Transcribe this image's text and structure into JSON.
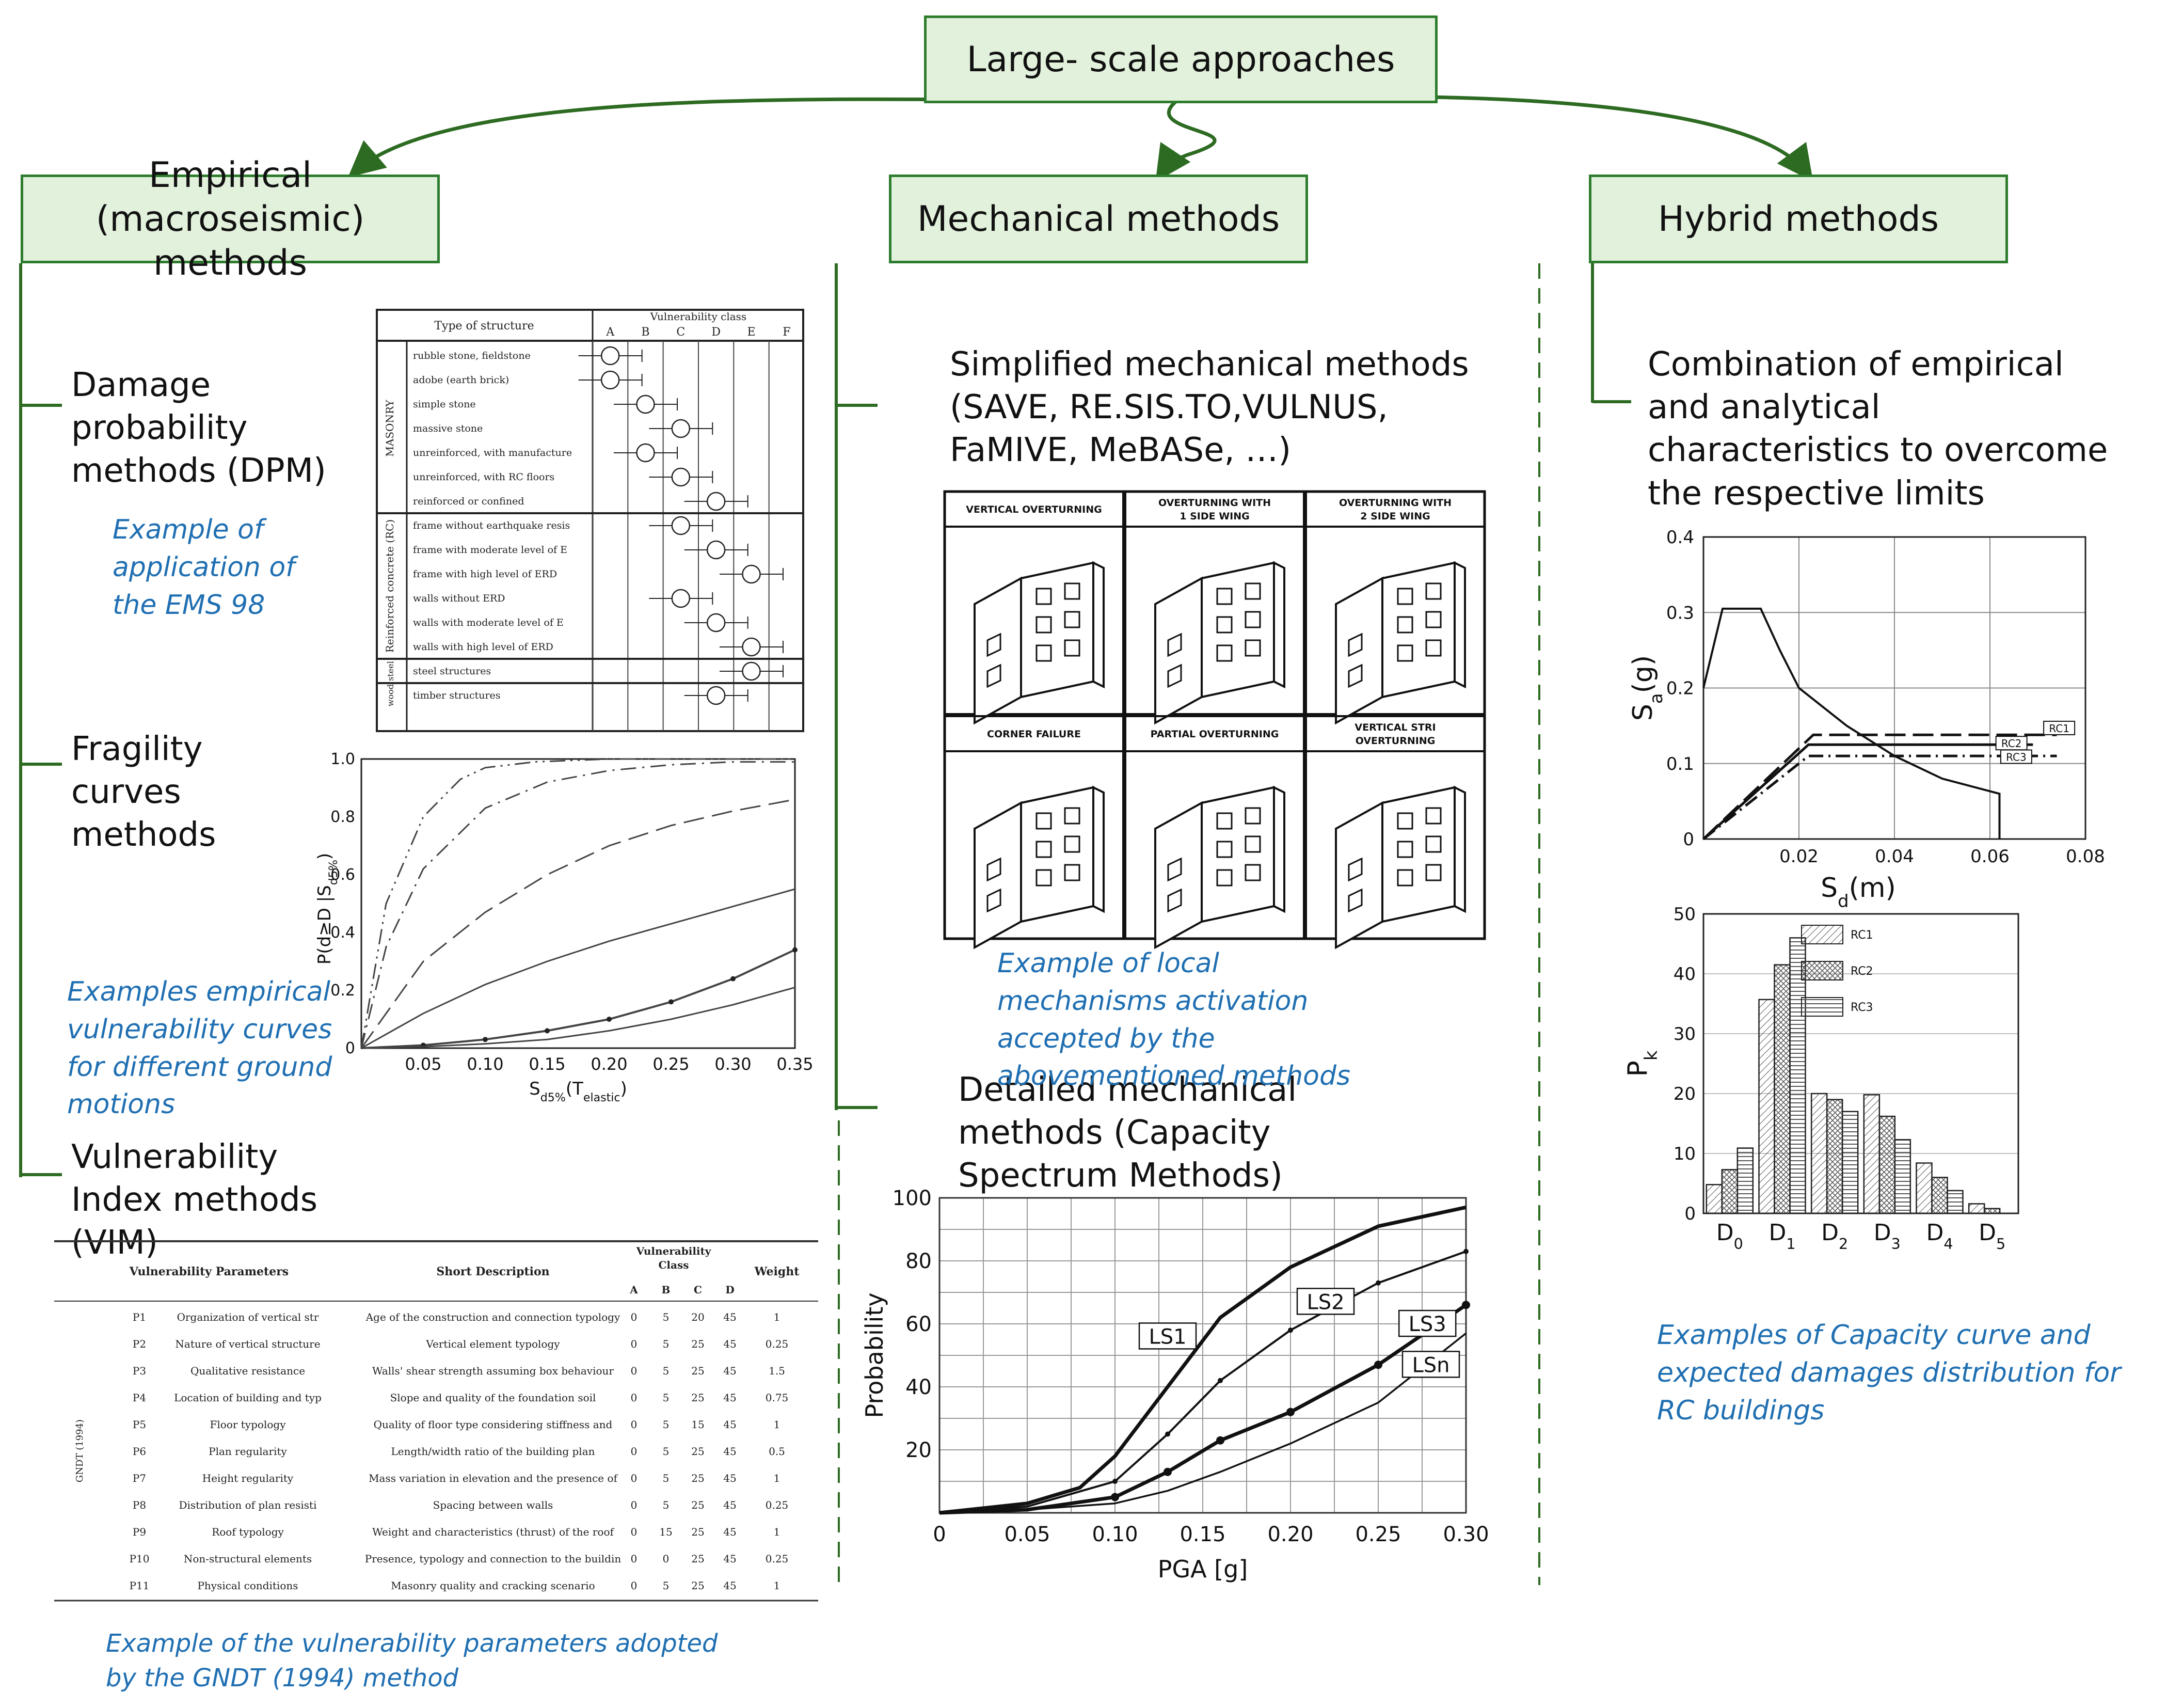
{
  "root": {
    "label": "Large- scale approaches"
  },
  "branches": {
    "empirical": "Empirical (macroseismic) methods",
    "mechanical": "Mechanical methods",
    "hybrid": "Hybrid methods"
  },
  "empirical": {
    "dpm": {
      "heading": "Damage probability methods (DPM)",
      "caption": "Example of application of the EMS 98"
    },
    "fragility": {
      "heading": "Fragility curves methods",
      "caption": "Examples empirical vulnerability curves for different ground motions"
    },
    "vim": {
      "heading": "Vulnerability Index methods (VIM)",
      "caption": "Example of the vulnerability parameters adopted by the GNDT (1994) method"
    }
  },
  "mechanical": {
    "simplified": {
      "heading": "Simplified mechanical methods (SAVE, RE.SIS.TO,VULNUS, FaMIVE, MeBASe, …)",
      "caption": "Example of local mechanisms activation accepted by the abovementioned methods"
    },
    "detailed": {
      "heading": "Detailed mechanical methods (Capacity Spectrum Methods)"
    }
  },
  "hybrid": {
    "combination": {
      "heading": "Combination of empirical and analytical characteristics to overcome the respective limits",
      "caption": "Examples of Capacity curve and expected damages distribution for RC buildings"
    }
  },
  "ems98_table": {
    "header_type": "Type of structure",
    "header_class": "Vulnerability class",
    "classes": [
      "A",
      "B",
      "C",
      "D",
      "E",
      "F"
    ],
    "groups": [
      "MASONRY",
      "Reinforced concrete (RC)",
      "steel",
      "wood"
    ],
    "rows": [
      {
        "label": "rubble stone, fieldstone",
        "most": "A"
      },
      {
        "label": "adobe (earth brick)",
        "most": "A"
      },
      {
        "label": "simple stone",
        "most": "B"
      },
      {
        "label": "massive stone",
        "most": "C"
      },
      {
        "label": "unreinforced, with manufactured stone units",
        "most": "B"
      },
      {
        "label": "unreinforced, with RC floors",
        "most": "C"
      },
      {
        "label": "reinforced or confined",
        "most": "D"
      },
      {
        "label": "frame without earthquake resistant design (ERD)",
        "most": "C"
      },
      {
        "label": "frame with moderate level of ERD",
        "most": "D"
      },
      {
        "label": "frame with high level of ERD",
        "most": "E"
      },
      {
        "label": "walls without ERD",
        "most": "C"
      },
      {
        "label": "walls with moderate level of ERD",
        "most": "D"
      },
      {
        "label": "walls with high level of ERD",
        "most": "E"
      },
      {
        "label": "steel structures",
        "most": "E"
      },
      {
        "label": "timber structures",
        "most": "D"
      }
    ]
  },
  "mechanisms": {
    "labels": [
      "VERTICAL OVERTURNING",
      "OVERTURNING WITH 1 SIDE WING",
      "OVERTURNING WITH 2 SIDE WING",
      "CORNER FAILURE",
      "PARTIAL OVERTURNING",
      "VERTICAL STRIP OVERTURNING"
    ]
  },
  "gndt_table": {
    "headers": [
      "Vulnerability Parameters",
      "Short Description",
      "Vulnerability Class",
      "Weight"
    ],
    "class_headers": [
      "A",
      "B",
      "C",
      "D"
    ],
    "group_label": "GNDT (1994)",
    "rows": [
      {
        "id": "P1",
        "param": "Organization of vertical structures",
        "desc": "Age of the construction and connection typology between the walls",
        "A": "0",
        "B": "5",
        "C": "20",
        "D": "45",
        "w": "1"
      },
      {
        "id": "P2",
        "param": "Nature of vertical structures",
        "desc": "Vertical element typology",
        "A": "0",
        "B": "5",
        "C": "25",
        "D": "45",
        "w": "0.25"
      },
      {
        "id": "P3",
        "param": "Qualitative resistance",
        "desc": "Walls' shear strength assuming box behaviour",
        "A": "0",
        "B": "5",
        "C": "25",
        "D": "45",
        "w": "1.5"
      },
      {
        "id": "P4",
        "param": "Location of building and type of foundation",
        "desc": "Slope and quality of the foundation soil",
        "A": "0",
        "B": "5",
        "C": "25",
        "D": "45",
        "w": "0.75"
      },
      {
        "id": "P5",
        "param": "Floor typology",
        "desc": "Quality of floor type considering stiffness and connection with the walls",
        "A": "0",
        "B": "5",
        "C": "15",
        "D": "45",
        "w": "1"
      },
      {
        "id": "P6",
        "param": "Plan regularity",
        "desc": "Length/width ratio of the building plan",
        "A": "0",
        "B": "5",
        "C": "25",
        "D": "45",
        "w": "0.5"
      },
      {
        "id": "P7",
        "param": "Height regularity",
        "desc": "Mass variation in elevation and the presence of arcades or towers",
        "A": "0",
        "B": "5",
        "C": "25",
        "D": "45",
        "w": "1"
      },
      {
        "id": "P8",
        "param": "Distribution of plan resisting elements",
        "desc": "Spacing between walls",
        "A": "0",
        "B": "5",
        "C": "25",
        "D": "45",
        "w": "0.25"
      },
      {
        "id": "P9",
        "param": "Roof typology",
        "desc": "Weight and characteristics (thrust) of the roof",
        "A": "0",
        "B": "15",
        "C": "25",
        "D": "45",
        "w": "1"
      },
      {
        "id": "P10",
        "param": "Non-structural elements",
        "desc": "Presence, typology and connection to the building",
        "A": "0",
        "B": "0",
        "C": "25",
        "D": "45",
        "w": "0.25"
      },
      {
        "id": "P11",
        "param": "Physical conditions",
        "desc": "Masonry quality and cracking scenario",
        "A": "0",
        "B": "5",
        "C": "25",
        "D": "45",
        "w": "1"
      }
    ]
  },
  "chart_data": [
    {
      "id": "fragility",
      "type": "line",
      "ylabel": "P(d≥D |S",
      "ylabel_sub": "d5%",
      "ylabel_end": ")",
      "xlabel": "S",
      "xlabel_sub": "d5%",
      "xlabel_rest": "(T",
      "xlabel_sub2": "elastic",
      "xlabel_end": ")",
      "xlim": [
        0,
        0.35
      ],
      "ylim": [
        0,
        1.0
      ],
      "xticks": [
        "0.05",
        "0.10",
        "0.15",
        "0.20",
        "0.25",
        "0.30",
        "0.35"
      ],
      "yticks": [
        "0",
        "0.2",
        "0.4",
        "0.6",
        "0.8",
        "1.0"
      ],
      "series": [
        {
          "style": "dashdotdot",
          "x": [
            0,
            0.02,
            0.05,
            0.08,
            0.1,
            0.14,
            0.2,
            0.3,
            0.35
          ],
          "y": [
            0,
            0.5,
            0.8,
            0.93,
            0.97,
            0.99,
            1.0,
            1.0,
            1.0
          ]
        },
        {
          "style": "dashdot",
          "x": [
            0,
            0.02,
            0.05,
            0.1,
            0.15,
            0.2,
            0.25,
            0.3,
            0.35
          ],
          "y": [
            0,
            0.35,
            0.62,
            0.83,
            0.92,
            0.96,
            0.98,
            0.99,
            0.99
          ]
        },
        {
          "style": "dash",
          "x": [
            0,
            0.05,
            0.1,
            0.15,
            0.2,
            0.25,
            0.3,
            0.35
          ],
          "y": [
            0,
            0.3,
            0.47,
            0.6,
            0.7,
            0.77,
            0.82,
            0.86
          ]
        },
        {
          "style": "solid",
          "x": [
            0,
            0.05,
            0.1,
            0.15,
            0.2,
            0.25,
            0.3,
            0.35
          ],
          "y": [
            0,
            0.12,
            0.22,
            0.3,
            0.37,
            0.43,
            0.49,
            0.55
          ]
        },
        {
          "style": "dotted-marker",
          "x": [
            0,
            0.05,
            0.1,
            0.15,
            0.2,
            0.25,
            0.3,
            0.35
          ],
          "y": [
            0,
            0.01,
            0.03,
            0.06,
            0.1,
            0.16,
            0.24,
            0.34
          ]
        },
        {
          "style": "solid-thin",
          "x": [
            0,
            0.05,
            0.1,
            0.15,
            0.2,
            0.25,
            0.3,
            0.35
          ],
          "y": [
            0,
            0.005,
            0.015,
            0.03,
            0.06,
            0.1,
            0.15,
            0.21
          ]
        }
      ]
    },
    {
      "id": "capacity_spectrum_fragility",
      "type": "line",
      "xlabel": "PGA [g]",
      "ylabel": "Probability",
      "xlim": [
        0,
        0.3
      ],
      "ylim": [
        0,
        100
      ],
      "xticks": [
        "0",
        "0.05",
        "0.10",
        "0.15",
        "0.20",
        "0.25",
        "0.30"
      ],
      "yticks": [
        "20",
        "40",
        "60",
        "80",
        "100"
      ],
      "series": [
        {
          "name": "LS1",
          "x": [
            0,
            0.05,
            0.08,
            0.1,
            0.13,
            0.16,
            0.2,
            0.25,
            0.3
          ],
          "y": [
            0,
            3,
            8,
            18,
            40,
            62,
            78,
            91,
            97
          ]
        },
        {
          "name": "LS2",
          "x": [
            0,
            0.05,
            0.1,
            0.13,
            0.16,
            0.2,
            0.25,
            0.3
          ],
          "y": [
            0,
            2,
            10,
            25,
            42,
            58,
            73,
            83
          ]
        },
        {
          "name": "LS3",
          "x": [
            0,
            0.05,
            0.1,
            0.13,
            0.16,
            0.2,
            0.25,
            0.3
          ],
          "y": [
            0,
            1,
            5,
            13,
            23,
            32,
            47,
            66
          ]
        },
        {
          "name": "LSn",
          "x": [
            0,
            0.05,
            0.1,
            0.13,
            0.16,
            0.2,
            0.25,
            0.3
          ],
          "y": [
            0,
            1,
            3,
            7,
            13,
            22,
            35,
            57
          ]
        }
      ]
    },
    {
      "id": "capacity_curve",
      "type": "line",
      "xlabel": "S",
      "xlabel_sub": "d",
      "xlabel_end": "(m)",
      "ylabel": "S",
      "ylabel_sub": "a",
      "ylabel_end": "(g)",
      "xlim": [
        0,
        0.08
      ],
      "ylim": [
        0,
        0.4
      ],
      "xticks": [
        "0.02",
        "0.04",
        "0.06",
        "0.08"
      ],
      "yticks": [
        "0",
        "0.1",
        "0.2",
        "0.3",
        "0.4"
      ],
      "spectrum": {
        "x": [
          0,
          0.004,
          0.012,
          0.016,
          0.02,
          0.03,
          0.04,
          0.05,
          0.062
        ],
        "y": [
          0.2,
          0.305,
          0.305,
          0.25,
          0.2,
          0.15,
          0.11,
          0.08,
          0.06
        ]
      },
      "series": [
        {
          "name": "RC1",
          "style": "dash",
          "x": [
            0,
            0.023,
            0.074
          ],
          "y": [
            0,
            0.138,
            0.138
          ]
        },
        {
          "name": "RC2",
          "style": "solid",
          "x": [
            0,
            0.022,
            0.069
          ],
          "y": [
            0,
            0.125,
            0.125
          ]
        },
        {
          "name": "RC3",
          "style": "dashdot",
          "x": [
            0,
            0.022,
            0.074
          ],
          "y": [
            0,
            0.11,
            0.11
          ]
        }
      ]
    },
    {
      "id": "damage_distribution",
      "type": "bar",
      "ylabel": "P",
      "ylabel_sub": "k",
      "categories": [
        "D0",
        "D1",
        "D2",
        "D3",
        "D4",
        "D5"
      ],
      "category_base": [
        "D",
        "D",
        "D",
        "D",
        "D",
        "D"
      ],
      "category_sub": [
        "0",
        "1",
        "2",
        "3",
        "4",
        "5"
      ],
      "ylim": [
        0,
        50
      ],
      "yticks": [
        "0",
        "10",
        "20",
        "30",
        "40",
        "50"
      ],
      "series": [
        {
          "name": "RC1",
          "values": [
            4.8,
            35.7,
            20,
            19.8,
            8.4,
            1.6
          ]
        },
        {
          "name": "RC2",
          "values": [
            7.3,
            41.5,
            19,
            16.2,
            6,
            0.8
          ]
        },
        {
          "name": "RC3",
          "values": [
            10.9,
            46,
            17,
            12.3,
            3.8,
            0
          ]
        }
      ]
    }
  ]
}
